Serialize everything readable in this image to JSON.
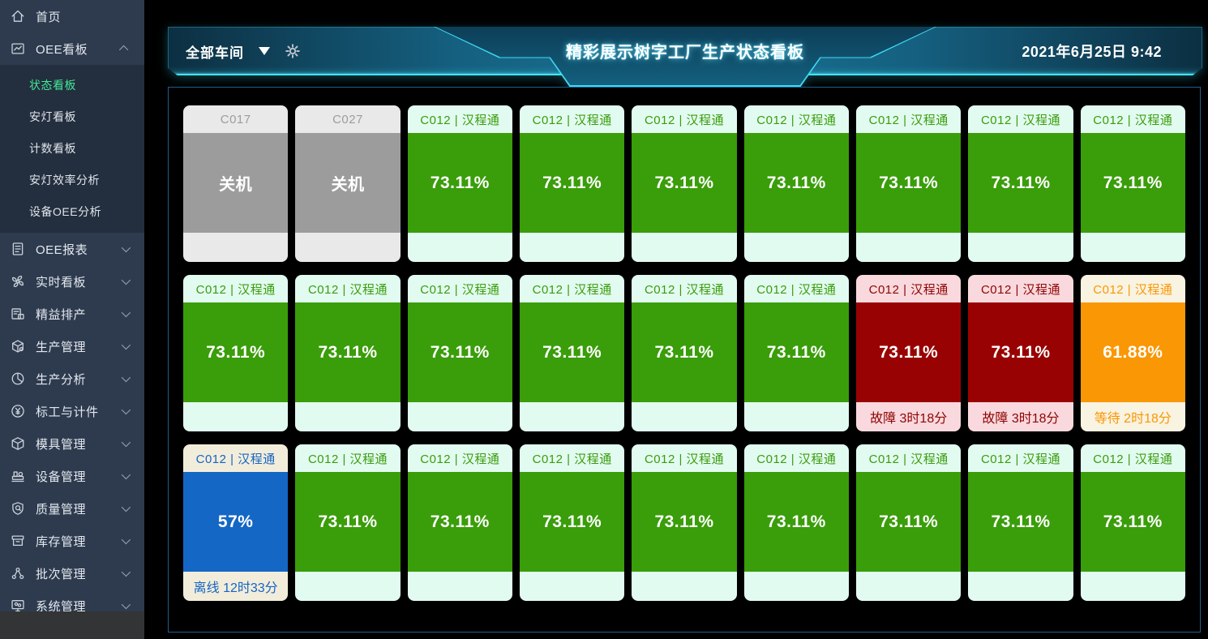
{
  "header": {
    "workshop_selector": "全部车间",
    "title": "精彩展示树字工厂生产状态看板",
    "datetime": "2021年6月25日 9:42"
  },
  "sidebar": {
    "items": [
      {
        "name": "home",
        "label": "首页",
        "icon": "home-icon",
        "chevron": ""
      },
      {
        "name": "oee-kanban",
        "label": "OEE看板",
        "icon": "kanban-icon",
        "chevron": "up",
        "children": [
          {
            "name": "status-board",
            "label": "状态看板",
            "active": true
          },
          {
            "name": "andon-board",
            "label": "安灯看板",
            "active": false
          },
          {
            "name": "count-board",
            "label": "计数看板",
            "active": false
          },
          {
            "name": "andon-efficiency-analysis",
            "label": "安灯效率分析",
            "active": false
          },
          {
            "name": "equipment-oee-analysis",
            "label": "设备OEE分析",
            "active": false
          }
        ]
      },
      {
        "name": "oee-report",
        "label": "OEE报表",
        "icon": "report-icon",
        "chevron": "down"
      },
      {
        "name": "realtime-board",
        "label": "实时看板",
        "icon": "fan-icon",
        "chevron": "down"
      },
      {
        "name": "lean-scheduling",
        "label": "精益排产",
        "icon": "schedule-icon",
        "chevron": "down"
      },
      {
        "name": "production-mgmt",
        "label": "生产管理",
        "icon": "cube-icon",
        "chevron": "down"
      },
      {
        "name": "production-analysis",
        "label": "生产分析",
        "icon": "pie-icon",
        "chevron": "down"
      },
      {
        "name": "standard-work-piecework",
        "label": "标工与计件",
        "icon": "yen-icon",
        "chevron": "down"
      },
      {
        "name": "mold-mgmt",
        "label": "模具管理",
        "icon": "mold-icon",
        "chevron": "down"
      },
      {
        "name": "equipment-mgmt",
        "label": "设备管理",
        "icon": "machine-icon",
        "chevron": "down"
      },
      {
        "name": "quality-mgmt",
        "label": "质量管理",
        "icon": "shield-icon",
        "chevron": "down"
      },
      {
        "name": "inventory-mgmt",
        "label": "库存管理",
        "icon": "archive-icon",
        "chevron": "down"
      },
      {
        "name": "batch-mgmt",
        "label": "批次管理",
        "icon": "nodes-icon",
        "chevron": "down"
      },
      {
        "name": "system-mgmt",
        "label": "系统管理",
        "icon": "monitor-icon",
        "chevron": "down"
      }
    ]
  },
  "status_colors": {
    "off": "#9c9c9c",
    "running": "#3a9d0a",
    "fault": "#990202",
    "waiting": "#fa9705",
    "offline": "#1567c5",
    "accent_cyan": "#46e3f7",
    "active_menu_green": "#42e695"
  },
  "cards": [
    {
      "title": "C017",
      "status": "off",
      "value": "关机",
      "footer": ""
    },
    {
      "title": "C027",
      "status": "off",
      "value": "关机",
      "footer": ""
    },
    {
      "title": "C012 | 汉程通",
      "status": "running",
      "value": "73.11%",
      "footer": ""
    },
    {
      "title": "C012 | 汉程通",
      "status": "running",
      "value": "73.11%",
      "footer": ""
    },
    {
      "title": "C012 | 汉程通",
      "status": "running",
      "value": "73.11%",
      "footer": ""
    },
    {
      "title": "C012 | 汉程通",
      "status": "running",
      "value": "73.11%",
      "footer": ""
    },
    {
      "title": "C012 | 汉程通",
      "status": "running",
      "value": "73.11%",
      "footer": ""
    },
    {
      "title": "C012 | 汉程通",
      "status": "running",
      "value": "73.11%",
      "footer": ""
    },
    {
      "title": "C012 | 汉程通",
      "status": "running",
      "value": "73.11%",
      "footer": ""
    },
    {
      "title": "C012 | 汉程通",
      "status": "running",
      "value": "73.11%",
      "footer": ""
    },
    {
      "title": "C012 | 汉程通",
      "status": "running",
      "value": "73.11%",
      "footer": ""
    },
    {
      "title": "C012 | 汉程通",
      "status": "running",
      "value": "73.11%",
      "footer": ""
    },
    {
      "title": "C012 | 汉程通",
      "status": "running",
      "value": "73.11%",
      "footer": ""
    },
    {
      "title": "C012 | 汉程通",
      "status": "running",
      "value": "73.11%",
      "footer": ""
    },
    {
      "title": "C012 | 汉程通",
      "status": "running",
      "value": "73.11%",
      "footer": ""
    },
    {
      "title": "C012 | 汉程通",
      "status": "fault",
      "value": "73.11%",
      "footer": "故障 3时18分"
    },
    {
      "title": "C012 | 汉程通",
      "status": "fault",
      "value": "73.11%",
      "footer": "故障 3时18分"
    },
    {
      "title": "C012 | 汉程通",
      "status": "waiting",
      "value": "61.88%",
      "footer": "等待 2时18分"
    },
    {
      "title": "C012 | 汉程通",
      "status": "offline",
      "value": "57%",
      "footer": "离线 12时33分"
    },
    {
      "title": "C012 | 汉程通",
      "status": "running",
      "value": "73.11%",
      "footer": ""
    },
    {
      "title": "C012 | 汉程通",
      "status": "running",
      "value": "73.11%",
      "footer": ""
    },
    {
      "title": "C012 | 汉程通",
      "status": "running",
      "value": "73.11%",
      "footer": ""
    },
    {
      "title": "C012 | 汉程通",
      "status": "running",
      "value": "73.11%",
      "footer": ""
    },
    {
      "title": "C012 | 汉程通",
      "status": "running",
      "value": "73.11%",
      "footer": ""
    },
    {
      "title": "C012 | 汉程通",
      "status": "running",
      "value": "73.11%",
      "footer": ""
    },
    {
      "title": "C012 | 汉程通",
      "status": "running",
      "value": "73.11%",
      "footer": ""
    },
    {
      "title": "C012 | 汉程通",
      "status": "running",
      "value": "73.11%",
      "footer": ""
    }
  ]
}
